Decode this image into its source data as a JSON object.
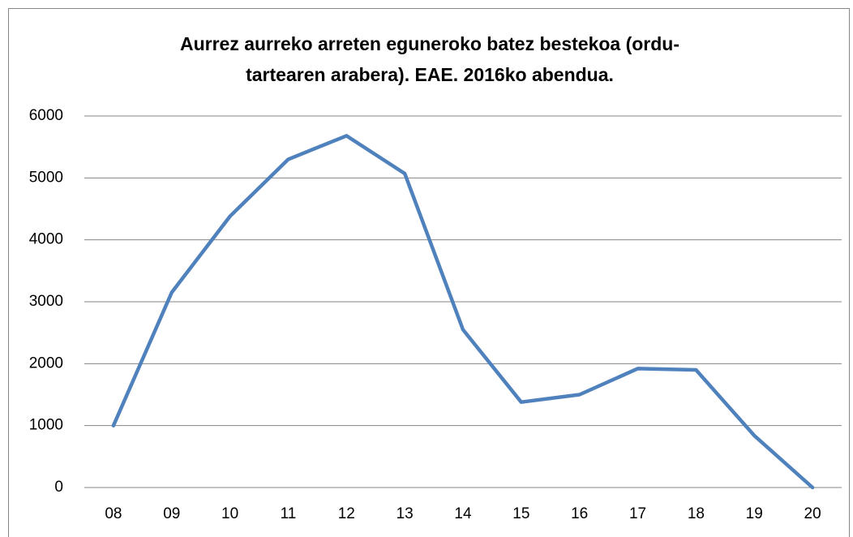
{
  "chart_data": {
    "type": "line",
    "title": [
      "Aurrez aurreko arreten eguneroko batez bestekoa (ordu-",
      "tartearen arabera). EAE. 2016ko abendua."
    ],
    "categories": [
      "08",
      "09",
      "10",
      "11",
      "12",
      "13",
      "14",
      "15",
      "16",
      "17",
      "18",
      "19",
      "20"
    ],
    "values": [
      1000,
      3150,
      4380,
      5300,
      5680,
      5070,
      2550,
      1380,
      1500,
      1920,
      1900,
      840,
      0
    ],
    "color": "#4f81bd",
    "ylim": [
      0,
      6000
    ],
    "yticks": [
      0,
      1000,
      2000,
      3000,
      4000,
      5000,
      6000
    ],
    "grid": true
  }
}
